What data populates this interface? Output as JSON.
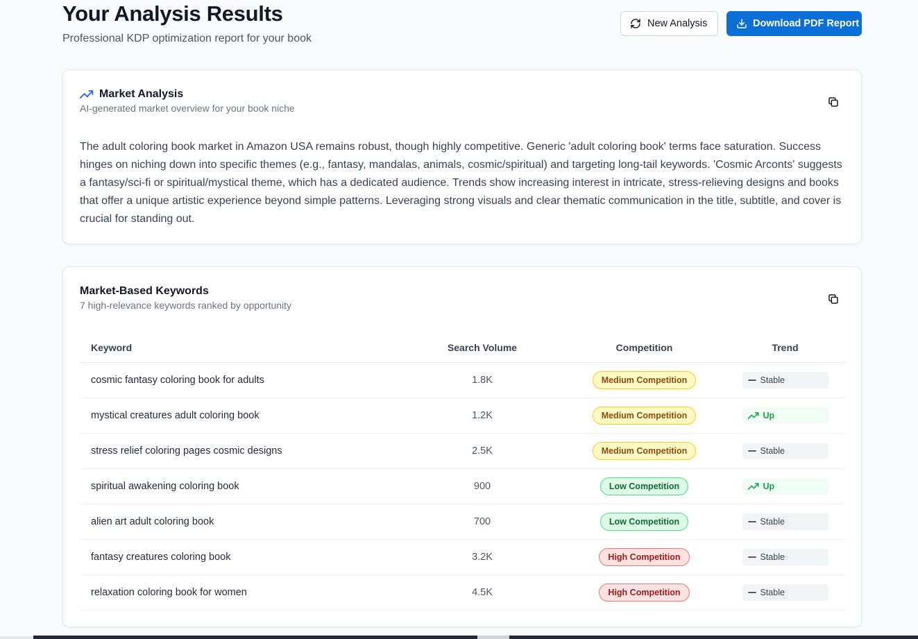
{
  "header": {
    "title": "Your Analysis Results",
    "subtitle": "Professional KDP optimization report for your book",
    "new_analysis_label": "New Analysis",
    "download_label": "Download PDF Report"
  },
  "market_analysis": {
    "title": "Market Analysis",
    "description": "AI-generated market overview for your book niche",
    "body": "The adult coloring book market in Amazon USA remains robust, though highly competitive. Generic 'adult coloring book' terms face saturation. Success hinges on niching down into specific themes (e.g., fantasy, mandalas, animals, cosmic/spiritual) and targeting long-tail keywords. 'Cosmic Arconts' suggests a fantasy/sci-fi or spiritual/mystical theme, which has a dedicated audience. Trends show increasing interest in intricate, stress-relieving designs and books that offer a unique artistic experience beyond simple patterns. Leveraging strong visuals and clear thematic communication in the title, subtitle, and cover is crucial for standing out."
  },
  "keywords": {
    "title": "Market-Based Keywords",
    "description": "7 high-relevance keywords ranked by opportunity",
    "columns": [
      "Keyword",
      "Search Volume",
      "Competition",
      "Trend"
    ],
    "rows": [
      {
        "keyword": "cosmic fantasy coloring book for adults",
        "volume": "1.8K",
        "competition": "Medium Competition",
        "level": "medium",
        "trend": "Stable"
      },
      {
        "keyword": "mystical creatures adult coloring book",
        "volume": "1.2K",
        "competition": "Medium Competition",
        "level": "medium",
        "trend": "Up"
      },
      {
        "keyword": "stress relief coloring pages cosmic designs",
        "volume": "2.5K",
        "competition": "Medium Competition",
        "level": "medium",
        "trend": "Stable"
      },
      {
        "keyword": "spiritual awakening coloring book",
        "volume": "900",
        "competition": "Low Competition",
        "level": "low",
        "trend": "Up"
      },
      {
        "keyword": "alien art adult coloring book",
        "volume": "700",
        "competition": "Low Competition",
        "level": "low",
        "trend": "Stable"
      },
      {
        "keyword": "fantasy creatures coloring book",
        "volume": "3.2K",
        "competition": "High Competition",
        "level": "high",
        "trend": "Stable"
      },
      {
        "keyword": "relaxation coloring book for women",
        "volume": "4.5K",
        "competition": "High Competition",
        "level": "high",
        "trend": "Stable"
      }
    ]
  },
  "colors": {
    "primary": "#0b6fd6",
    "medium": "#fef9c3",
    "low": "#dcfce7",
    "high": "#fee2e2",
    "trend_up": "#16a34a"
  },
  "icons": {
    "refresh": "refresh-icon",
    "download": "download-icon",
    "trending": "trending-up-icon",
    "copy": "copy-icon",
    "stable": "minus-icon"
  }
}
